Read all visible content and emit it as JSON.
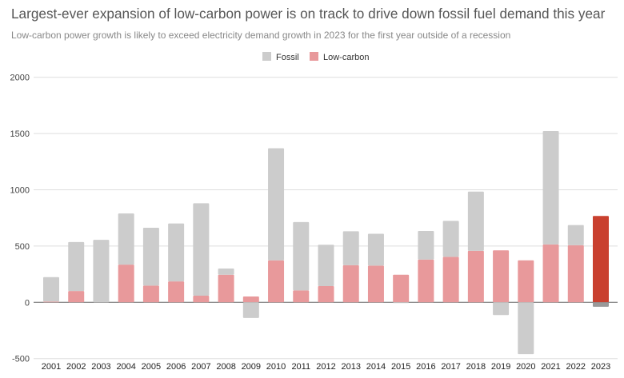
{
  "chart_data": {
    "type": "bar",
    "stacked": true,
    "title": "Largest-ever expansion of low-carbon power is on track to drive down fossil fuel demand this year",
    "subtitle": "Low-carbon power growth is likely to exceed electricity demand growth in 2023 for the first year outside of a recession",
    "xlabel": "",
    "ylabel": "",
    "ylim": [
      -500,
      2000
    ],
    "yticks": [
      -500,
      0,
      500,
      1000,
      1500,
      2000
    ],
    "grid": true,
    "legend_position": "top",
    "categories": [
      "2001",
      "2002",
      "2003",
      "2004",
      "2005",
      "2006",
      "2007",
      "2008",
      "2009",
      "2010",
      "2011",
      "2012",
      "2013",
      "2014",
      "2015",
      "2016",
      "2017",
      "2018",
      "2019",
      "2020",
      "2021",
      "2022",
      "2023"
    ],
    "series": [
      {
        "name": "Fossil",
        "color": "#cccccc",
        "highlight_color": "#999999",
        "values": [
          217,
          435,
          555,
          455,
          514,
          515,
          821,
          55,
          -139,
          996,
          607,
          368,
          302,
          283,
          -5,
          254,
          320,
          526,
          -113,
          -460,
          1008,
          180,
          -40
        ]
      },
      {
        "name": "Low-carbon",
        "color": "#e8999b",
        "highlight_color": "#c9402f",
        "values": [
          7,
          101,
          0,
          335,
          149,
          186,
          59,
          245,
          52,
          373,
          106,
          144,
          330,
          326,
          245,
          380,
          404,
          458,
          462,
          373,
          514,
          507,
          767
        ]
      }
    ],
    "highlight_category": "2023"
  }
}
